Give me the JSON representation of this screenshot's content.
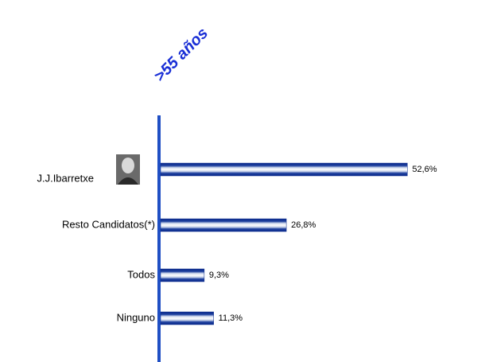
{
  "chart_data": {
    "type": "bar",
    "orientation": "horizontal",
    "title": ">55 años",
    "categories": [
      "J.J.Ibarretxe",
      "Resto  Candidatos(*)",
      "Todos",
      "Ninguno"
    ],
    "values": [
      52.6,
      26.8,
      9.3,
      11.3
    ],
    "value_labels": [
      "52,6%",
      "26,8%",
      "9,3%",
      "11,3%"
    ],
    "color": "#0b2a8c",
    "axis_color": "#1f4fc4"
  }
}
